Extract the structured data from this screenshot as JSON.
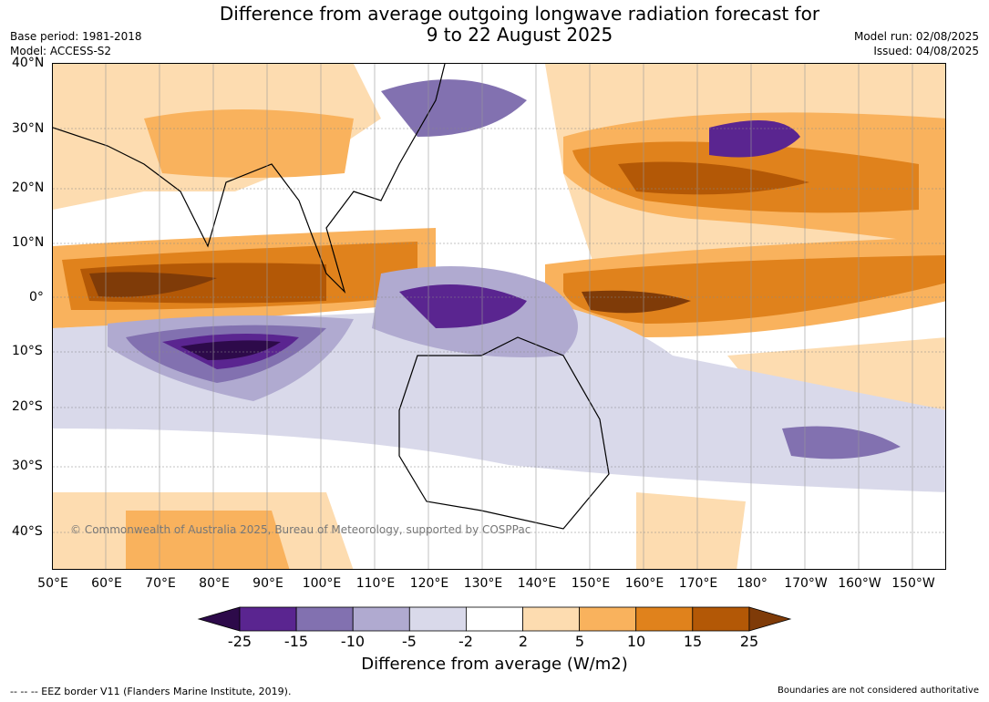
{
  "title_line1": "Difference from average outgoing longwave radiation forecast for",
  "title_line2": "9 to 22 August 2025",
  "base_period": "Base period: 1981-2018",
  "model": "Model: ACCESS-S2",
  "model_run": "Model run: 02/08/2025",
  "issued": "Issued: 04/08/2025",
  "lat_labels": [
    "40°N",
    "30°N",
    "20°N",
    "10°N",
    "0°",
    "10°S",
    "20°S",
    "30°S",
    "40°S"
  ],
  "lon_labels": [
    "50°E",
    "60°E",
    "70°E",
    "80°E",
    "90°E",
    "100°E",
    "110°E",
    "120°E",
    "130°E",
    "140°E",
    "150°E",
    "160°E",
    "170°E",
    "180°",
    "170°W",
    "160°W",
    "150°W"
  ],
  "copyright": "© Commonwealth of Australia 2025, Bureau of Meteorology, supported by COSPPac",
  "colorbar": {
    "ticks": [
      "-25",
      "-15",
      "-10",
      "-5",
      "-2",
      "2",
      "5",
      "10",
      "15",
      "25"
    ],
    "colors": [
      "#2d0a4a",
      "#5a2590",
      "#8271b0",
      "#b0aad0",
      "#d9d9ea",
      "#ffffff",
      "#fddcb0",
      "#f9b25d",
      "#e0821c",
      "#b35806",
      "#7f3b08"
    ],
    "label": "Difference from average (W/m2)"
  },
  "footer_left": "--  --  -- EEZ border V11 (Flanders Marine Institute, 2019).",
  "footer_right": "Boundaries are not considered authoritative"
}
